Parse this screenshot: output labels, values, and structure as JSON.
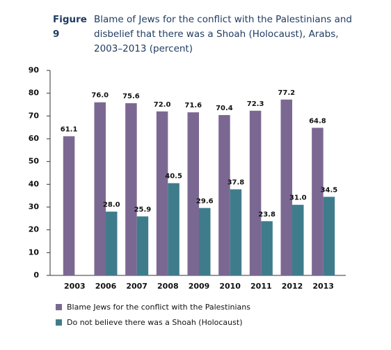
{
  "chart_data": {
    "type": "bar",
    "figure_label": "Figure 9",
    "title": "Blame of Jews for the conflict with the Palestinians and disbelief that there was a Shoah (Holocaust), Arabs, 2003–2013 (percent)",
    "categories": [
      "2003",
      "2006",
      "2007",
      "2008",
      "2009",
      "2010",
      "2011",
      "2012",
      "2013"
    ],
    "series": [
      {
        "name": "Blame Jews for the conflict with the Palestinians",
        "color": "#7b6892",
        "values": [
          61.1,
          76.0,
          75.6,
          72.0,
          71.6,
          70.4,
          72.3,
          77.2,
          64.8
        ],
        "value_labels": [
          "61.1",
          "76.0",
          "75.6",
          "72.0",
          "71.6",
          "70.4",
          "72.3",
          "77.2",
          "64.8"
        ]
      },
      {
        "name": "Do not believe there was a Shoah (Holocaust)",
        "color": "#3f7c8b",
        "values": [
          null,
          28.0,
          25.9,
          40.5,
          29.6,
          37.8,
          23.8,
          31.0,
          34.5
        ],
        "value_labels": [
          null,
          "28.0",
          "25.9",
          "40.5",
          "29.6",
          "37.8",
          "23.8",
          "31.0",
          "34.5"
        ]
      }
    ],
    "ylim": [
      0,
      90
    ],
    "yticks": [
      0,
      10,
      20,
      30,
      40,
      50,
      60,
      70,
      80,
      90
    ],
    "grid": false
  }
}
